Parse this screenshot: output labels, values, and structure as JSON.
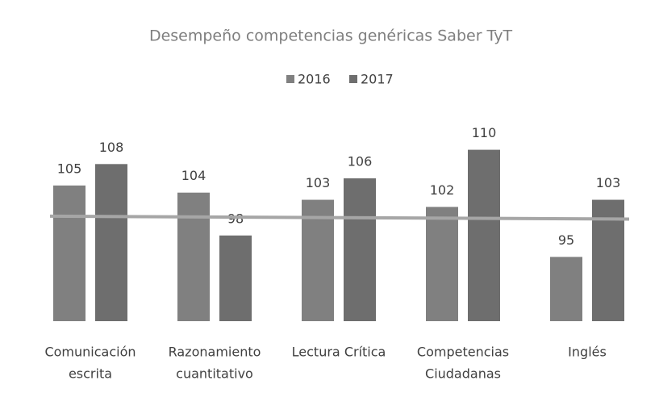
{
  "chart_data": {
    "type": "bar",
    "title": "Desempeño competencias genéricas Saber TyT",
    "categories": [
      [
        "Comunicación",
        "escrita"
      ],
      [
        "Razonamiento",
        "cuantitativo"
      ],
      [
        "Lectura Crítica"
      ],
      [
        "Competencias",
        "Ciudadanas"
      ],
      [
        "Inglés"
      ]
    ],
    "series": [
      {
        "name": "2016",
        "color": "#808080",
        "values": [
          105,
          104,
          103,
          102,
          95
        ]
      },
      {
        "name": "2017",
        "color": "#6e6e6e",
        "values": [
          108,
          98,
          106,
          110,
          103
        ]
      }
    ],
    "reference_line": {
      "color": "#a6a6a6",
      "values": [
        100.7,
        100.3
      ]
    },
    "ylim": [
      86,
      116
    ],
    "legend": "top"
  }
}
